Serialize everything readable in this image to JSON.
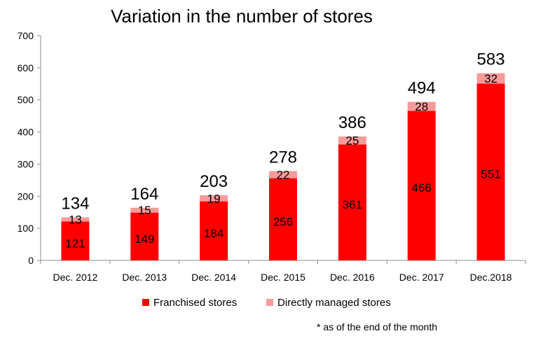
{
  "chart_data": {
    "type": "bar",
    "stacked": true,
    "title": "Variation in the number of stores",
    "categories": [
      "Dec. 2012",
      "Dec. 2013",
      "Dec. 2014",
      "Dec. 2015",
      "Dec. 2016",
      "Dec. 2017",
      "Dec.2018"
    ],
    "series": [
      {
        "name": "Franchised stores",
        "color": "#ff0000",
        "values": [
          121,
          149,
          184,
          256,
          361,
          466,
          551
        ]
      },
      {
        "name": "Directly managed stores",
        "color": "#f79a9a",
        "values": [
          13,
          15,
          19,
          22,
          25,
          28,
          32
        ]
      }
    ],
    "totals": [
      134,
      164,
      203,
      278,
      386,
      494,
      583
    ],
    "ylim": [
      0,
      700
    ],
    "yticks": [
      0,
      100,
      200,
      300,
      400,
      500,
      600,
      700
    ],
    "grid": false,
    "legend_position": "bottom",
    "note": "* as of the end of the month"
  }
}
